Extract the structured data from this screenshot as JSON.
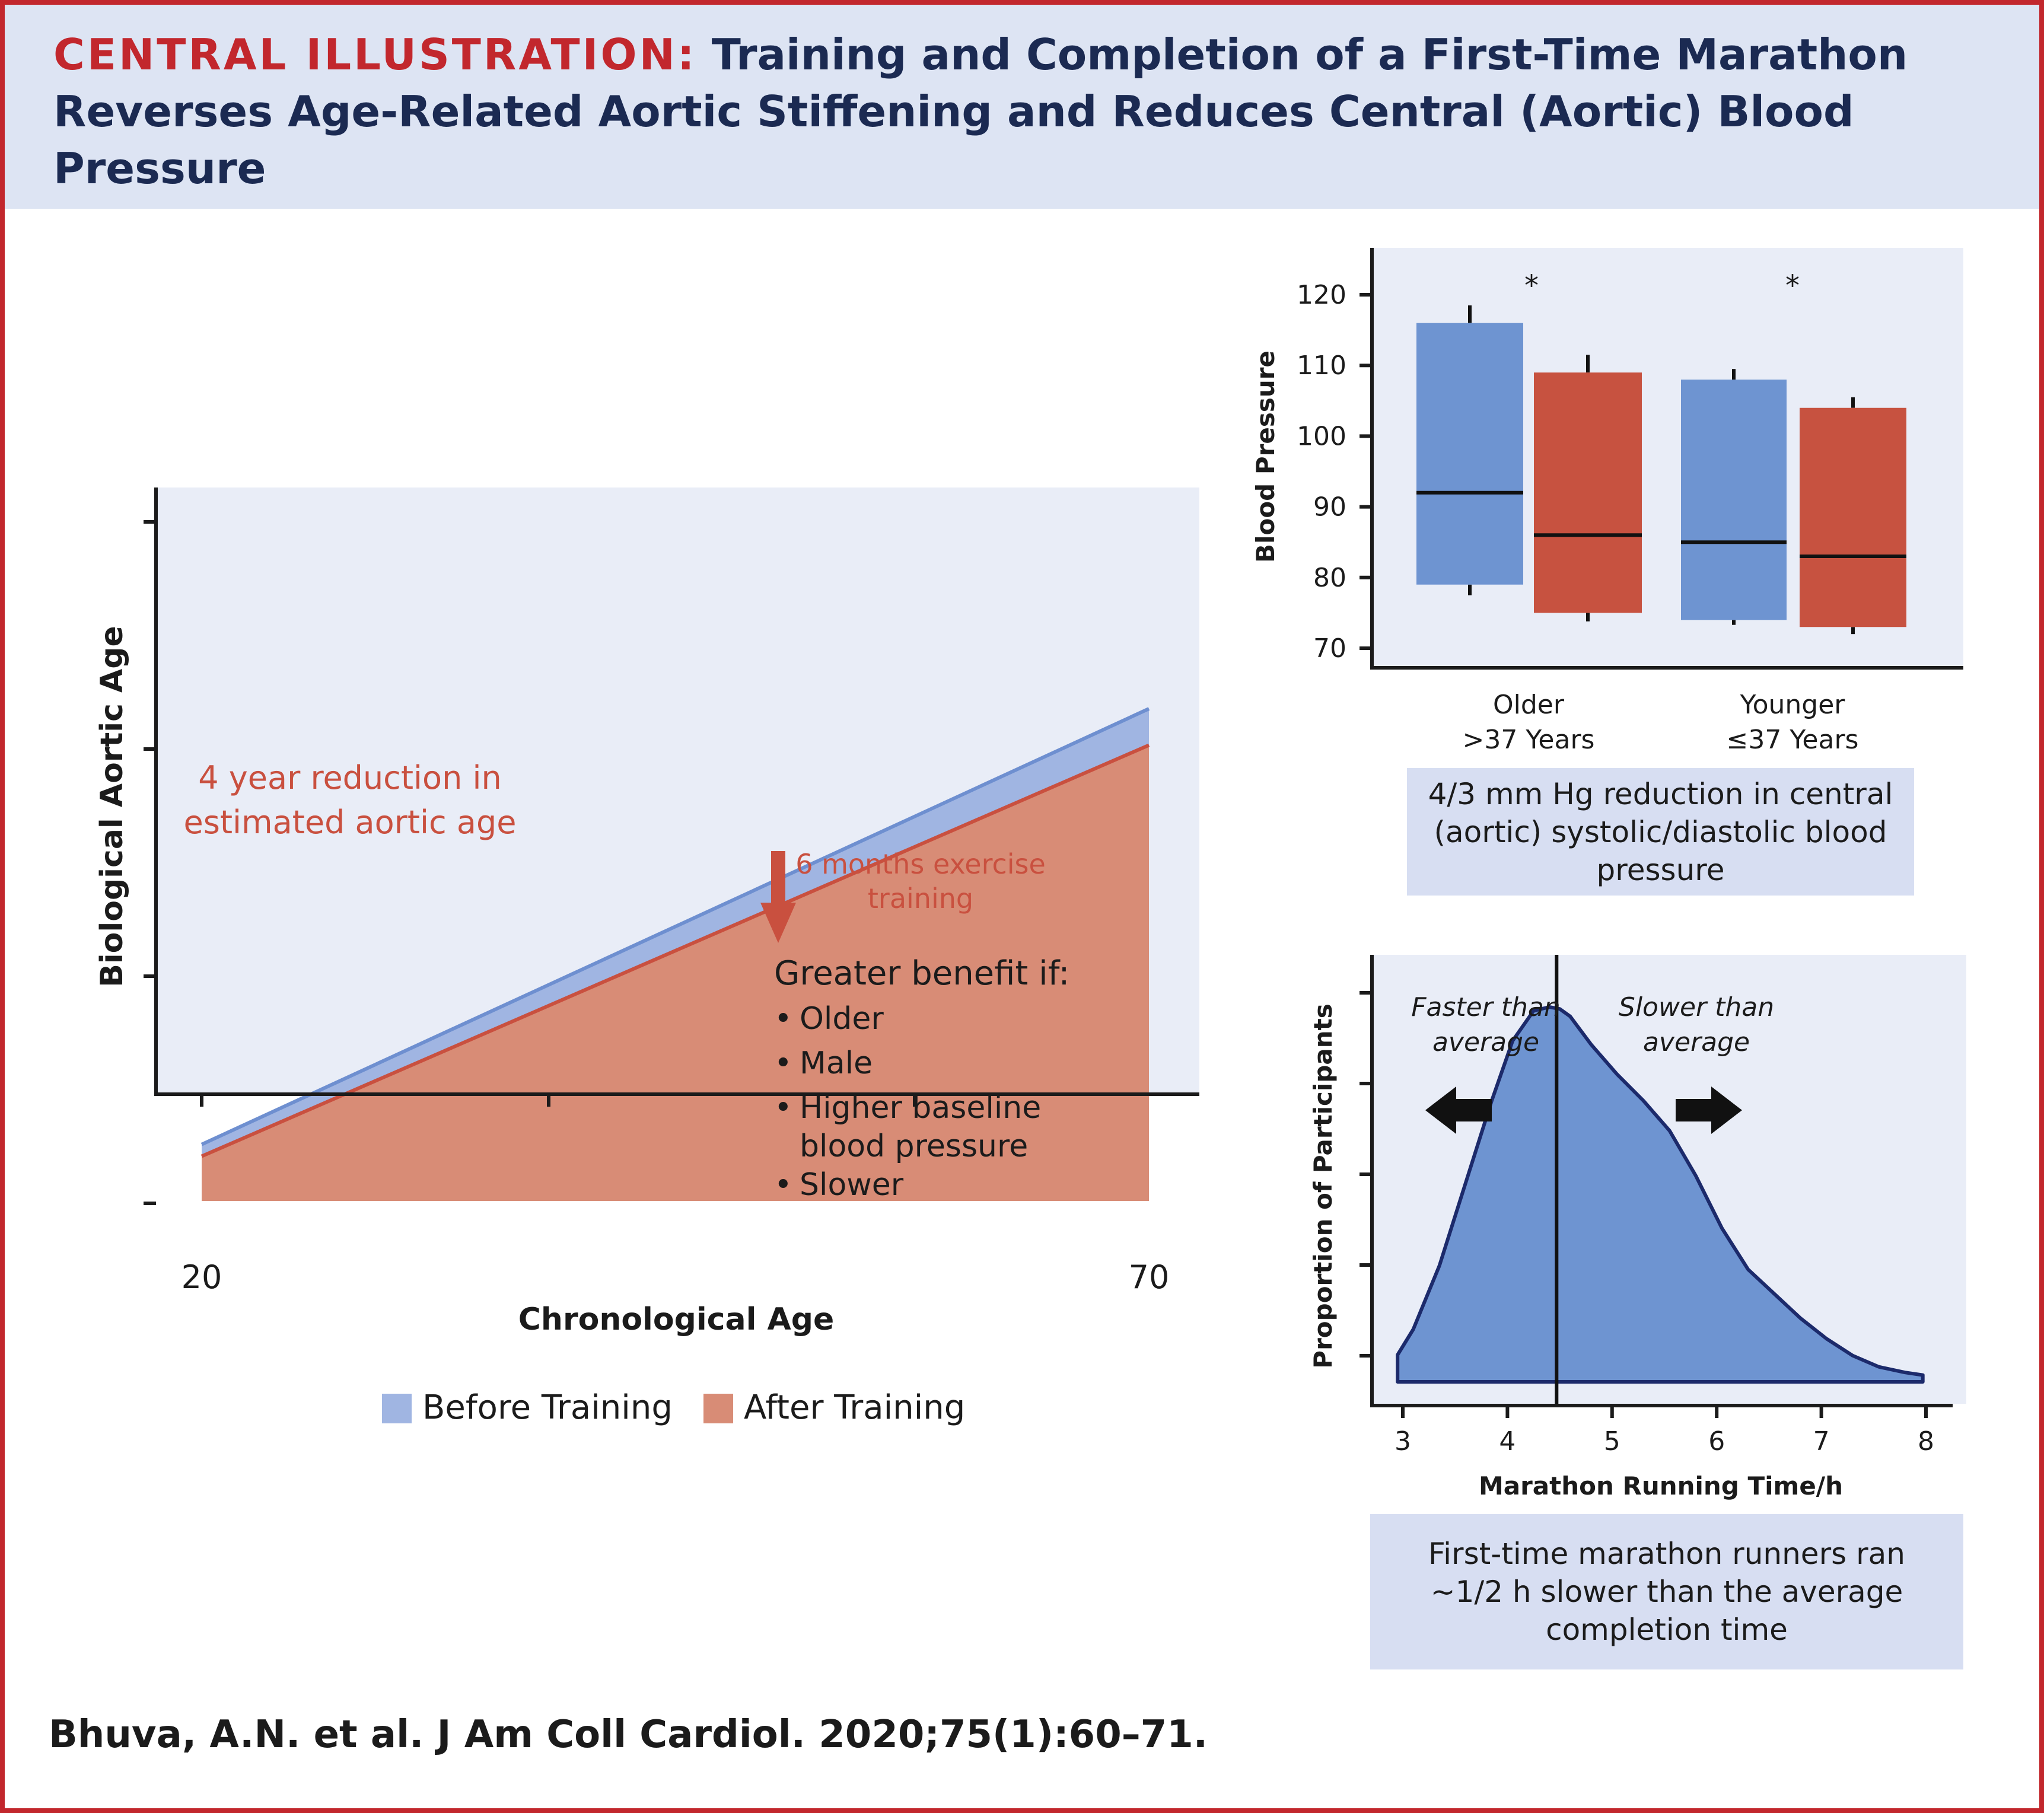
{
  "figure": {
    "title_prefix": "CENTRAL ILLUSTRATION:",
    "title": "Training and Completion of a First-Time Marathon Reverses Age-Related Aortic Stiffening and Reduces Central (Aortic) Blood Pressure",
    "citation": "Bhuva, A.N. et al. J Am Coll Cardiol. 2020;75(1):60–71."
  },
  "colors": {
    "accent_red": "#c2272d",
    "title_navy": "#1b2a52",
    "before_fill": "#a0b5e2",
    "before_line": "#6e8fd0",
    "after_fill": "#d88c76",
    "after_line": "#c9503f",
    "box_blue": "#6e94d1",
    "box_red": "#c75240",
    "density_fill": "#6e94d1",
    "density_line": "#1c2a6b",
    "panel_bg": "#e9edf7",
    "caption_bg": "#d7def2"
  },
  "chart_data": [
    {
      "type": "area",
      "xlabel": "Chronological Age",
      "ylabel": "Biological Aortic Age",
      "x_ticks": [
        "20",
        "70"
      ],
      "xlim": [
        20,
        70
      ],
      "series": [
        {
          "name": "Before Training",
          "x": [
            20,
            70
          ],
          "y": [
            22.2,
            70
          ]
        },
        {
          "name": "After Training",
          "x": [
            20,
            70
          ],
          "y": [
            20.9,
            66
          ]
        }
      ],
      "annotations": {
        "reduction": [
          "4 year reduction in",
          "estimated aortic age"
        ],
        "exercise": [
          "6 months exercise",
          "training"
        ],
        "benefit_heading": "Greater benefit if:",
        "benefit_items": [
          "Older",
          "Male",
          "Higher baseline",
          "blood pressure",
          "Slower"
        ]
      },
      "legend": {
        "placement": "bottom",
        "items": [
          "Before Training",
          "After Training"
        ]
      }
    },
    {
      "type": "box",
      "ylabel": "Blood Pressure",
      "ylim": [
        70,
        120
      ],
      "y_ticks": [
        70,
        80,
        90,
        100,
        110,
        120
      ],
      "groups": [
        {
          "label_lines": [
            "Older",
            ">37 Years"
          ],
          "significance": "*",
          "boxes": [
            {
              "series": "Before Training",
              "q1": 79,
              "median": 92,
              "q3": 116,
              "whisker_low": 77.5,
              "whisker_high": 118.5
            },
            {
              "series": "After Training",
              "q1": 75,
              "median": 86,
              "q3": 109,
              "whisker_low": 73.8,
              "whisker_high": 111.5
            }
          ]
        },
        {
          "label_lines": [
            "Younger",
            "≤37 Years"
          ],
          "significance": "*",
          "boxes": [
            {
              "series": "Before Training",
              "q1": 74,
              "median": 85,
              "q3": 108,
              "whisker_low": 73.3,
              "whisker_high": 109.5
            },
            {
              "series": "After Training",
              "q1": 73,
              "median": 83,
              "q3": 104,
              "whisker_low": 72,
              "whisker_high": 105.5
            }
          ]
        }
      ],
      "caption": "4/3 mm Hg reduction in central (aortic) systolic/diastolic blood pressure"
    },
    {
      "type": "area",
      "xlabel": "Marathon Running Time/h",
      "ylabel": "Proportion of Participants",
      "xlim": [
        3,
        8
      ],
      "x_ticks": [
        3,
        4,
        5,
        6,
        7,
        8
      ],
      "series": [
        {
          "x": [
            2.95,
            2.95,
            3.1,
            3.35,
            3.6,
            3.85,
            4.05,
            4.25,
            4.4,
            4.5,
            4.6,
            4.8,
            5.05,
            5.3,
            5.55,
            5.8,
            6.05,
            6.3,
            6.55,
            6.8,
            7.05,
            7.3,
            7.55,
            7.8,
            7.97,
            7.97
          ],
          "y": [
            0.0,
            0.072,
            0.14,
            0.31,
            0.53,
            0.75,
            0.91,
            0.99,
            1.0,
            0.995,
            0.975,
            0.9,
            0.82,
            0.75,
            0.67,
            0.55,
            0.41,
            0.3,
            0.235,
            0.17,
            0.115,
            0.07,
            0.04,
            0.025,
            0.018,
            0.0
          ]
        }
      ],
      "vertical_line_x": 4.47,
      "annotations": {
        "faster": [
          "Faster than",
          "average"
        ],
        "slower": [
          "Slower than",
          "average"
        ]
      },
      "caption": "First-time marathon runners ran ~1/2 h slower than the average completion time"
    }
  ]
}
